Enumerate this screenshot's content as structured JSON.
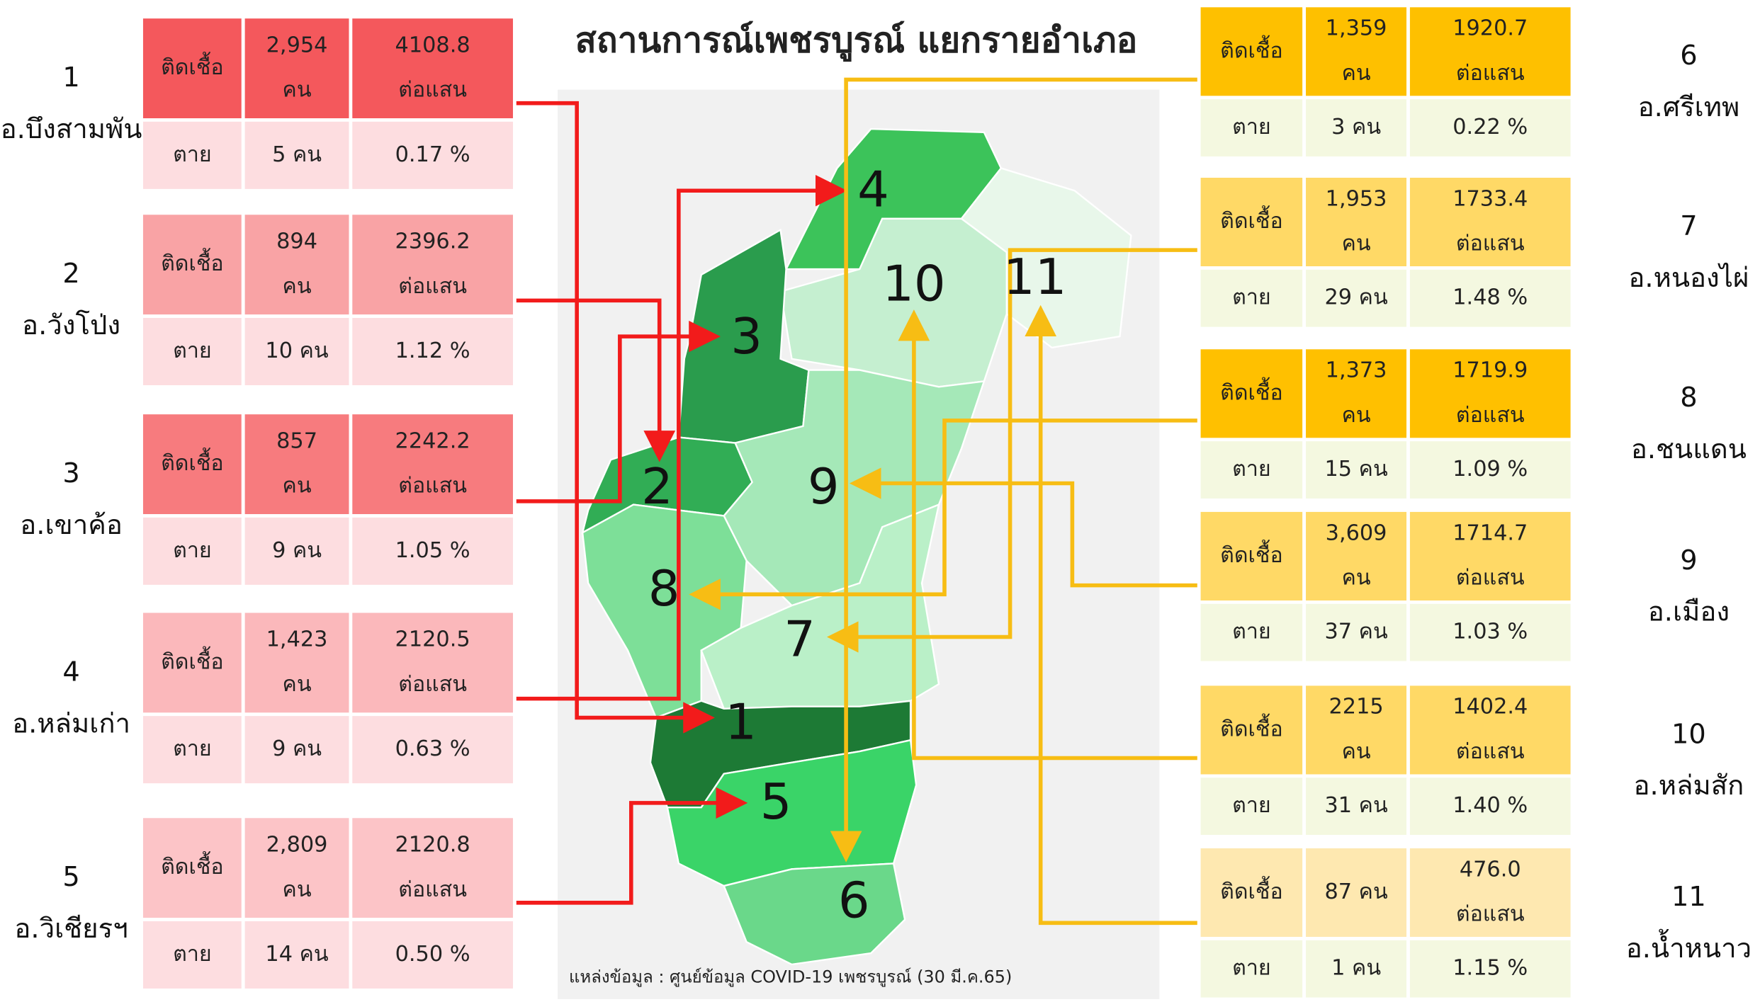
{
  "title": "สถานการณ์เพชรบูรณ์ แยกรายอำเภอ",
  "source": "แหล่งข้อมูล : ศูนย์ข้อมูล COVID-19 เพชรบูรณ์ (30 มี.ค.65)",
  "districts": [
    {
      "number": "1",
      "name": "อ.บึงสามพัน",
      "infected_label": "ติดเชื้อ",
      "cases": [
        "2,954",
        "คน"
      ],
      "rate": [
        "4108.8",
        "ต่อแสน"
      ],
      "dead_label": "ตาย",
      "deaths": "5 คน",
      "cfr": "0.17 %",
      "color": "#f4585c",
      "detail_color": "#fddde0"
    },
    {
      "number": "2",
      "name": "อ.วังโป่ง",
      "infected_label": "ติดเชื้อ",
      "cases": [
        "894",
        "คน"
      ],
      "rate": [
        "2396.2",
        "ต่อแสน"
      ],
      "dead_label": "ตาย",
      "deaths": "10 คน",
      "cfr": "1.12 %",
      "color": "#f9a3a5",
      "detail_color": "#fddde0"
    },
    {
      "number": "3",
      "name": "อ.เขาค้อ",
      "infected_label": "ติดเชื้อ",
      "cases": [
        "857",
        "คน"
      ],
      "rate": [
        "2242.2",
        "ต่อแสน"
      ],
      "dead_label": "ตาย",
      "deaths": "9 คน",
      "cfr": "1.05 %",
      "color": "#f77b7e",
      "detail_color": "#fddde0"
    },
    {
      "number": "4",
      "name": "อ.หล่มเก่า",
      "infected_label": "ติดเชื้อ",
      "cases": [
        "1,423",
        "คน"
      ],
      "rate": [
        "2120.5",
        "ต่อแสน"
      ],
      "dead_label": "ตาย",
      "deaths": "9 คน",
      "cfr": "0.63 %",
      "color": "#fbb8bb",
      "detail_color": "#fddde0"
    },
    {
      "number": "5",
      "name": "อ.วิเชียรฯ",
      "infected_label": "ติดเชื้อ",
      "cases": [
        "2,809",
        "คน"
      ],
      "rate": [
        "2120.8",
        "ต่อแสน"
      ],
      "dead_label": "ตาย",
      "deaths": "14 คน",
      "cfr": "0.50 %",
      "color": "#fcc4c7",
      "detail_color": "#fddde0"
    },
    {
      "number": "6",
      "name": "อ.ศรีเทพ",
      "infected_label": "ติดเชื้อ",
      "cases": [
        "1,359",
        "คน"
      ],
      "rate": [
        "1920.7",
        "ต่อแสน"
      ],
      "dead_label": "ตาย",
      "deaths": "3 คน",
      "cfr": "0.22 %",
      "color": "#fec000",
      "detail_color": "#f4f8e0"
    },
    {
      "number": "7",
      "name": "อ.หนองไผ่",
      "infected_label": "ติดเชื้อ",
      "cases": [
        "1,953",
        "คน"
      ],
      "rate": [
        "1733.4",
        "ต่อแสน"
      ],
      "dead_label": "ตาย",
      "deaths": "29 คน",
      "cfr": "1.48 %",
      "color": "#ffd966",
      "detail_color": "#f4f8e0"
    },
    {
      "number": "8",
      "name": "อ.ชนแดน",
      "infected_label": "ติดเชื้อ",
      "cases": [
        "1,373",
        "คน"
      ],
      "rate": [
        "1719.9",
        "ต่อแสน"
      ],
      "dead_label": "ตาย",
      "deaths": "15 คน",
      "cfr": "1.09 %",
      "color": "#ffc000",
      "detail_color": "#f4f8e0"
    },
    {
      "number": "9",
      "name": "อ.เมือง",
      "infected_label": "ติดเชื้อ",
      "cases": [
        "3,609",
        "คน"
      ],
      "rate": [
        "1714.7",
        "ต่อแสน"
      ],
      "dead_label": "ตาย",
      "deaths": "37 คน",
      "cfr": "1.03 %",
      "color": "#ffd966",
      "detail_color": "#f4f8e0"
    },
    {
      "number": "10",
      "name": "อ.หล่มสัก",
      "infected_label": "ติดเชื้อ",
      "cases": [
        "2215",
        "คน"
      ],
      "rate": [
        "1402.4",
        "ต่อแสน"
      ],
      "dead_label": "ตาย",
      "deaths": "31 คน",
      "cfr": "1.40 %",
      "color": "#ffd966",
      "detail_color": "#f4f8e0"
    },
    {
      "number": "11",
      "name": "อ.น้ำหนาว",
      "infected_label": "ติดเชื้อ",
      "cases": [
        "87 คน"
      ],
      "rate": [
        "476.0",
        "ต่อแสน"
      ],
      "dead_label": "ตาย",
      "deaths": "1 คน",
      "cfr": "1.15 %",
      "color": "#fee8b0",
      "detail_color": "#f4f8e0"
    }
  ]
}
